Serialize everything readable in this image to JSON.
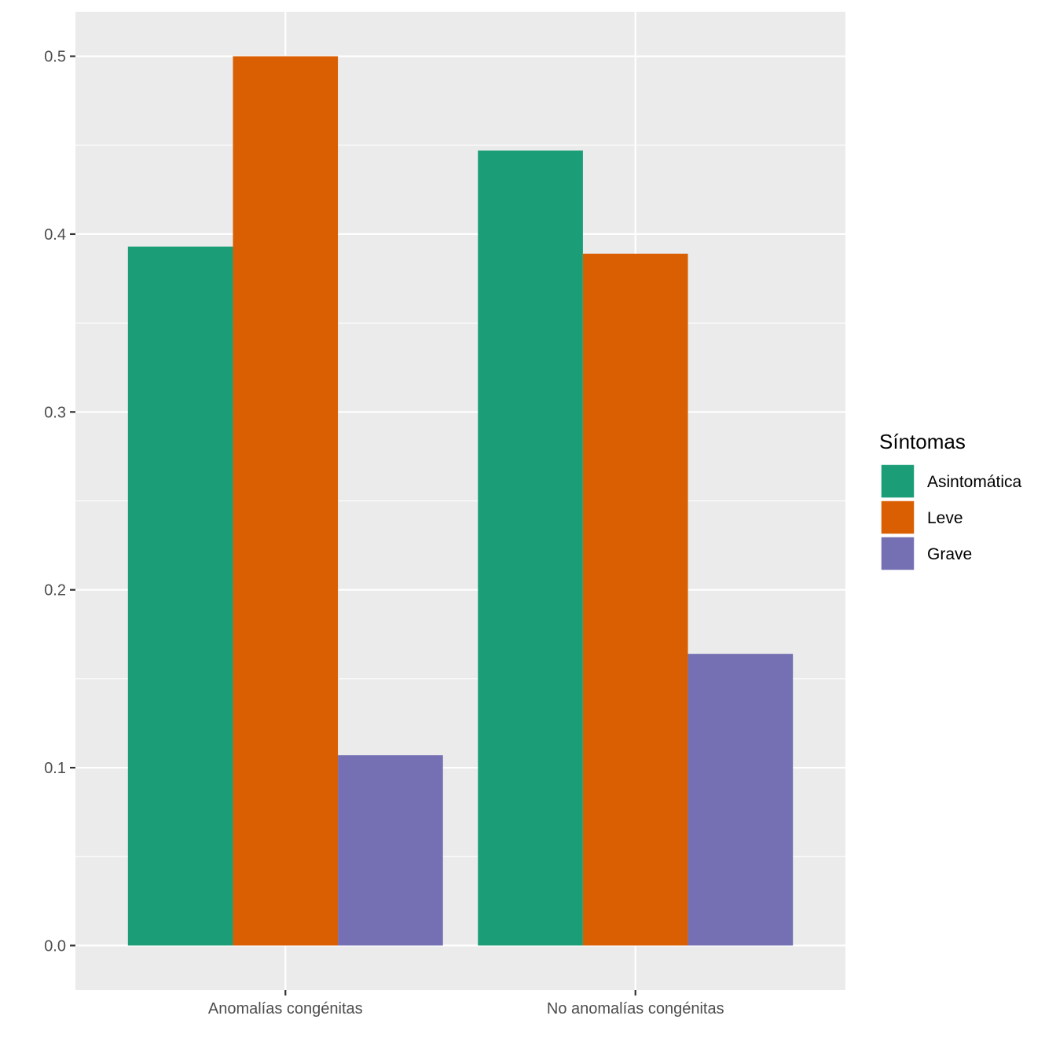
{
  "chart_data": {
    "type": "bar",
    "categories": [
      "Anomalías congénitas",
      "No anomalías congénitas"
    ],
    "series": [
      {
        "name": "Asintomática",
        "values": [
          0.393,
          0.447
        ],
        "color": "#1B9E77"
      },
      {
        "name": "Leve",
        "values": [
          0.5,
          0.389
        ],
        "color": "#D95F02"
      },
      {
        "name": "Grave",
        "values": [
          0.107,
          0.164
        ],
        "color": "#7570B3"
      }
    ],
    "title": "",
    "xlabel": "",
    "ylabel": "",
    "ylim": [
      -0.025,
      0.525
    ],
    "yticks": [
      0.0,
      0.1,
      0.2,
      0.3,
      0.4,
      0.5
    ],
    "ytick_labels": [
      "0.0",
      "0.1",
      "0.2",
      "0.3",
      "0.4",
      "0.5"
    ],
    "grid": true,
    "legend": {
      "title": "Síntomas",
      "placement": "right"
    },
    "panel_background": "#EBEBEB",
    "grid_color": "#FFFFFF"
  }
}
